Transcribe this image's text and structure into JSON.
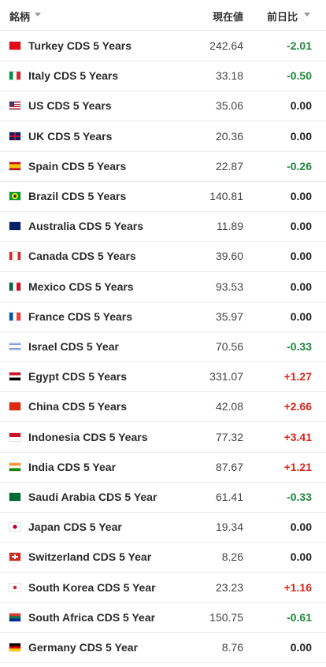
{
  "table": {
    "header": [
      "銘柄",
      "現在値",
      "前日比"
    ],
    "rows": [
      [
        "Turkey CDS 5 Years",
        "242.64",
        "-2.01"
      ],
      [
        "Italy CDS 5 Years",
        "33.18",
        "-0.50"
      ],
      [
        "US CDS 5 Years",
        "35.06",
        "0.00"
      ],
      [
        "UK CDS 5 Years",
        "20.36",
        "0.00"
      ],
      [
        "Spain CDS 5 Years",
        "22.87",
        "-0.26"
      ],
      [
        "Brazil CDS 5 Years",
        "140.81",
        "0.00"
      ],
      [
        "Australia CDS 5 Years",
        "11.89",
        "0.00"
      ],
      [
        "Canada CDS 5 Years",
        "39.60",
        "0.00"
      ],
      [
        "Mexico CDS 5 Years",
        "93.53",
        "0.00"
      ],
      [
        "France CDS 5 Years",
        "35.97",
        "0.00"
      ],
      [
        "Israel CDS 5 Year",
        "70.56",
        "-0.33"
      ],
      [
        "Egypt CDS 5 Years",
        "331.07",
        "+1.27"
      ],
      [
        "China CDS 5 Years",
        "42.08",
        "+2.66"
      ],
      [
        "Indonesia CDS 5 Years",
        "77.32",
        "+3.41"
      ],
      [
        "India CDS 5 Year",
        "87.67",
        "+1.21"
      ],
      [
        "Saudi Arabia CDS 5 Year",
        "61.41",
        "-0.33"
      ],
      [
        "Japan CDS 5 Year",
        "19.34",
        "0.00"
      ],
      [
        "Switzerland CDS 5 Year",
        "8.26",
        "0.00"
      ],
      [
        "South Korea CDS 5 Year",
        "23.23",
        "+1.16"
      ],
      [
        "South Africa CDS 5 Year",
        "150.75",
        "-0.61"
      ],
      [
        "Germany CDS 5 Year",
        "8.76",
        "0.00"
      ]
    ]
  }
}
